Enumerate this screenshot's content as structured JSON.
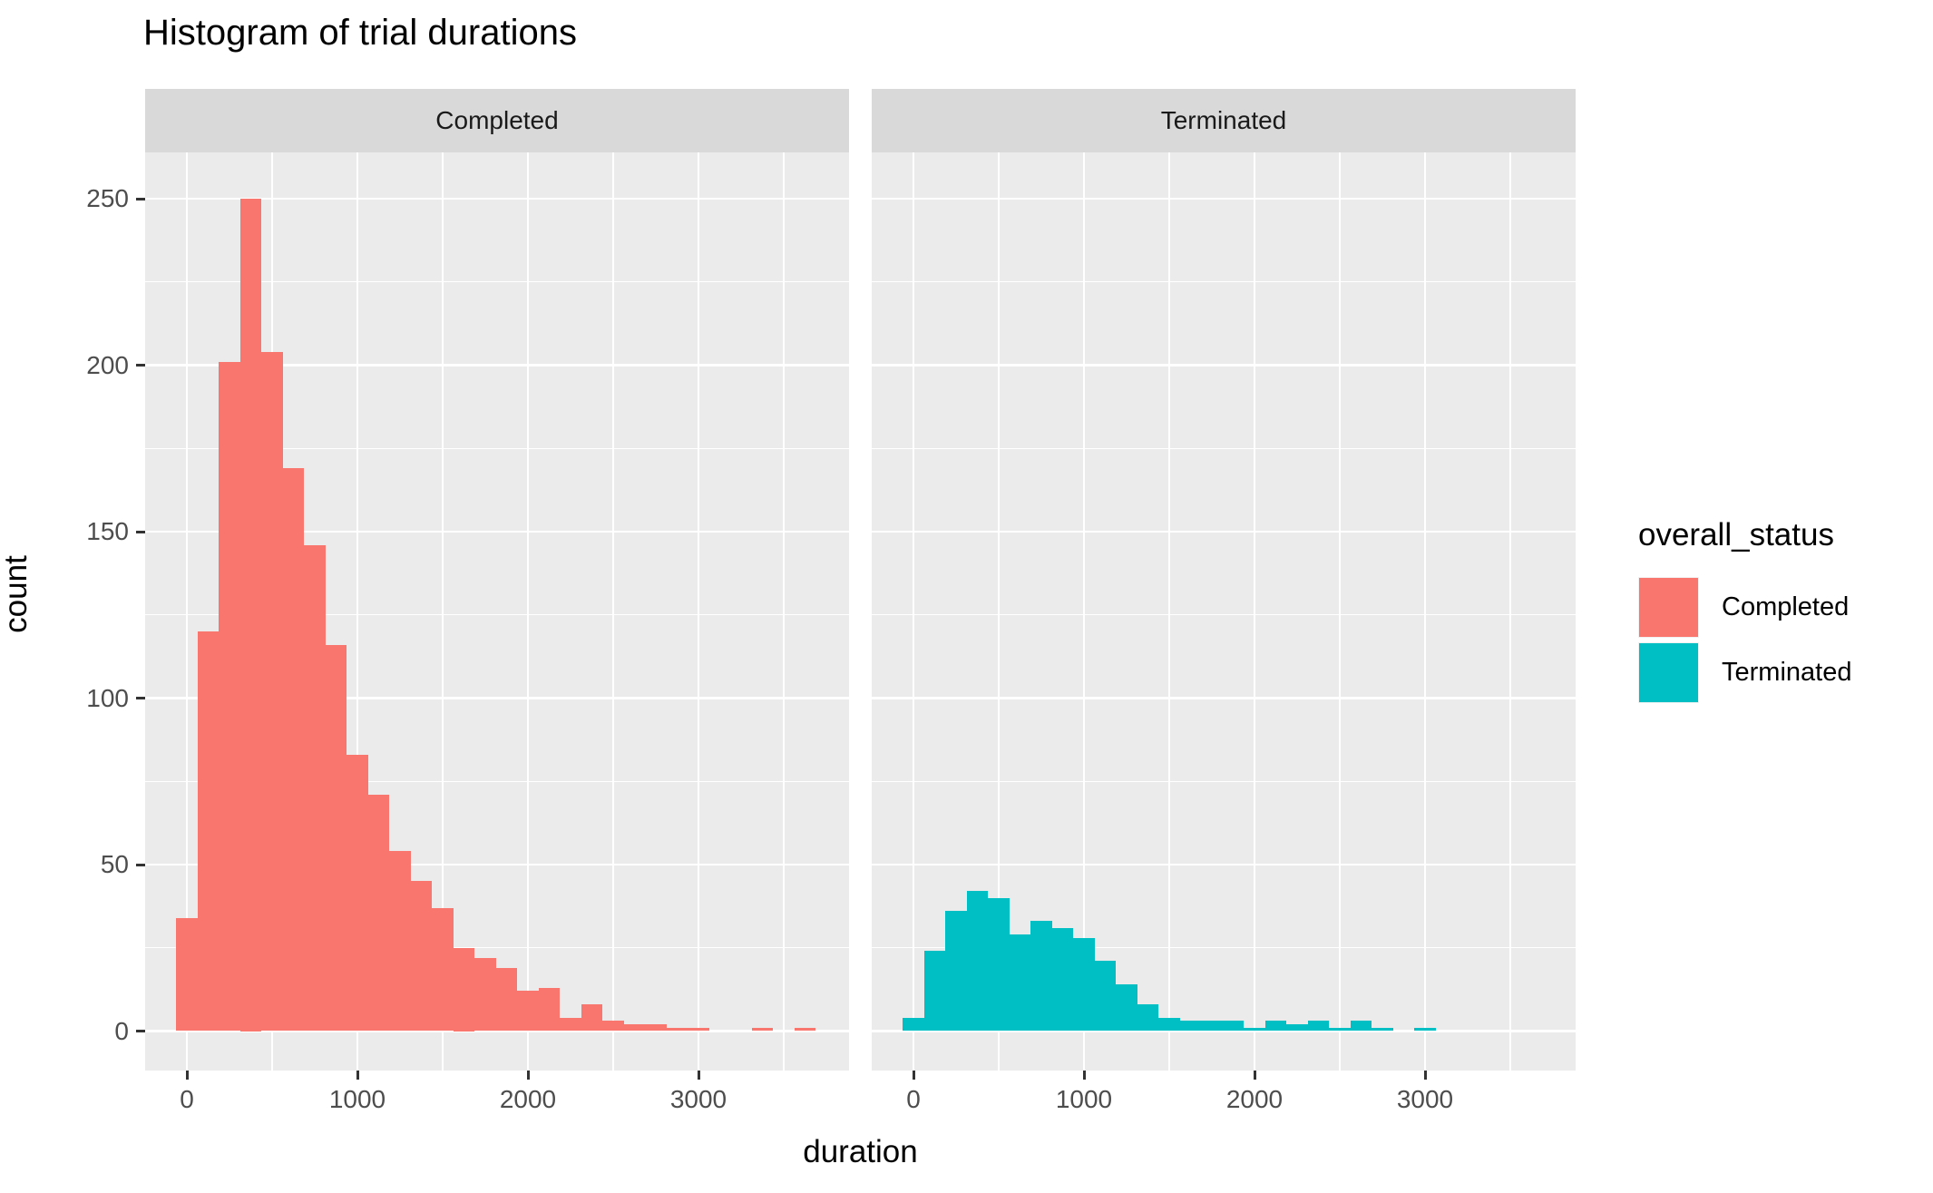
{
  "title": "Histogram of trial durations",
  "facets": [
    {
      "label": "Completed"
    },
    {
      "label": "Terminated"
    }
  ],
  "axes": {
    "x": {
      "label": "duration",
      "ticks": [
        "0",
        "1000",
        "2000",
        "3000"
      ]
    },
    "y": {
      "label": "count",
      "ticks": [
        "0",
        "50",
        "100",
        "150",
        "200",
        "250"
      ]
    }
  },
  "legend": {
    "title": "overall_status",
    "items": [
      {
        "label": "Completed",
        "color": "#F8766D"
      },
      {
        "label": "Terminated",
        "color": "#00BFC4"
      }
    ]
  },
  "colors": {
    "panel_background": "#EBEBEB",
    "strip_background": "#D9D9D9",
    "gridline": "#FFFFFF",
    "tick_mark": "#333333",
    "tick_label": "#4D4D4D",
    "completed_fill": "#F8766D",
    "terminated_fill": "#00BFC4"
  },
  "chart_data": {
    "type": "bar",
    "subtype": "faceted-histogram",
    "title": "Histogram of trial durations",
    "xlabel": "duration",
    "ylabel": "count",
    "bin_start": -62.5,
    "bin_width": 125,
    "x_major_ticks": [
      0,
      1000,
      2000,
      3000
    ],
    "x_minor_ticks": [
      500,
      1500,
      2500,
      3500
    ],
    "y_major_ticks": [
      0,
      50,
      100,
      150,
      200,
      250
    ],
    "y_minor_ticks": [
      25,
      75,
      125,
      175,
      225
    ],
    "ylim": [
      0,
      265
    ],
    "legend_position": "right",
    "grid": true,
    "series": [
      {
        "name": "Completed",
        "color": "#F8766D",
        "bin_centers": [
          0,
          125,
          250,
          375,
          500,
          625,
          750,
          875,
          1000,
          1125,
          1250,
          1375,
          1500,
          1625,
          1750,
          1875,
          2000,
          2125,
          2250,
          2375,
          2500,
          2625,
          2750,
          2875,
          3000,
          3125,
          3250,
          3375,
          3500,
          3625
        ],
        "counts": [
          34,
          120,
          201,
          250,
          204,
          169,
          146,
          116,
          83,
          71,
          54,
          45,
          37,
          25,
          22,
          19,
          12,
          13,
          4,
          8,
          3,
          2,
          2,
          1,
          1,
          0,
          0,
          1,
          0,
          1
        ]
      },
      {
        "name": "Terminated",
        "color": "#00BFC4",
        "bin_centers": [
          0,
          125,
          250,
          375,
          500,
          625,
          750,
          875,
          1000,
          1125,
          1250,
          1375,
          1500,
          1625,
          1750,
          1875,
          2000,
          2125,
          2250,
          2375,
          2500,
          2625,
          2750,
          2875,
          3000,
          3125,
          3250,
          3375,
          3500,
          3625
        ],
        "counts": [
          4,
          24,
          36,
          42,
          40,
          29,
          33,
          31,
          28,
          21,
          14,
          8,
          4,
          3,
          3,
          3,
          1,
          3,
          2,
          3,
          1,
          3,
          1,
          0,
          1,
          0,
          0,
          0,
          0,
          0
        ]
      }
    ]
  }
}
